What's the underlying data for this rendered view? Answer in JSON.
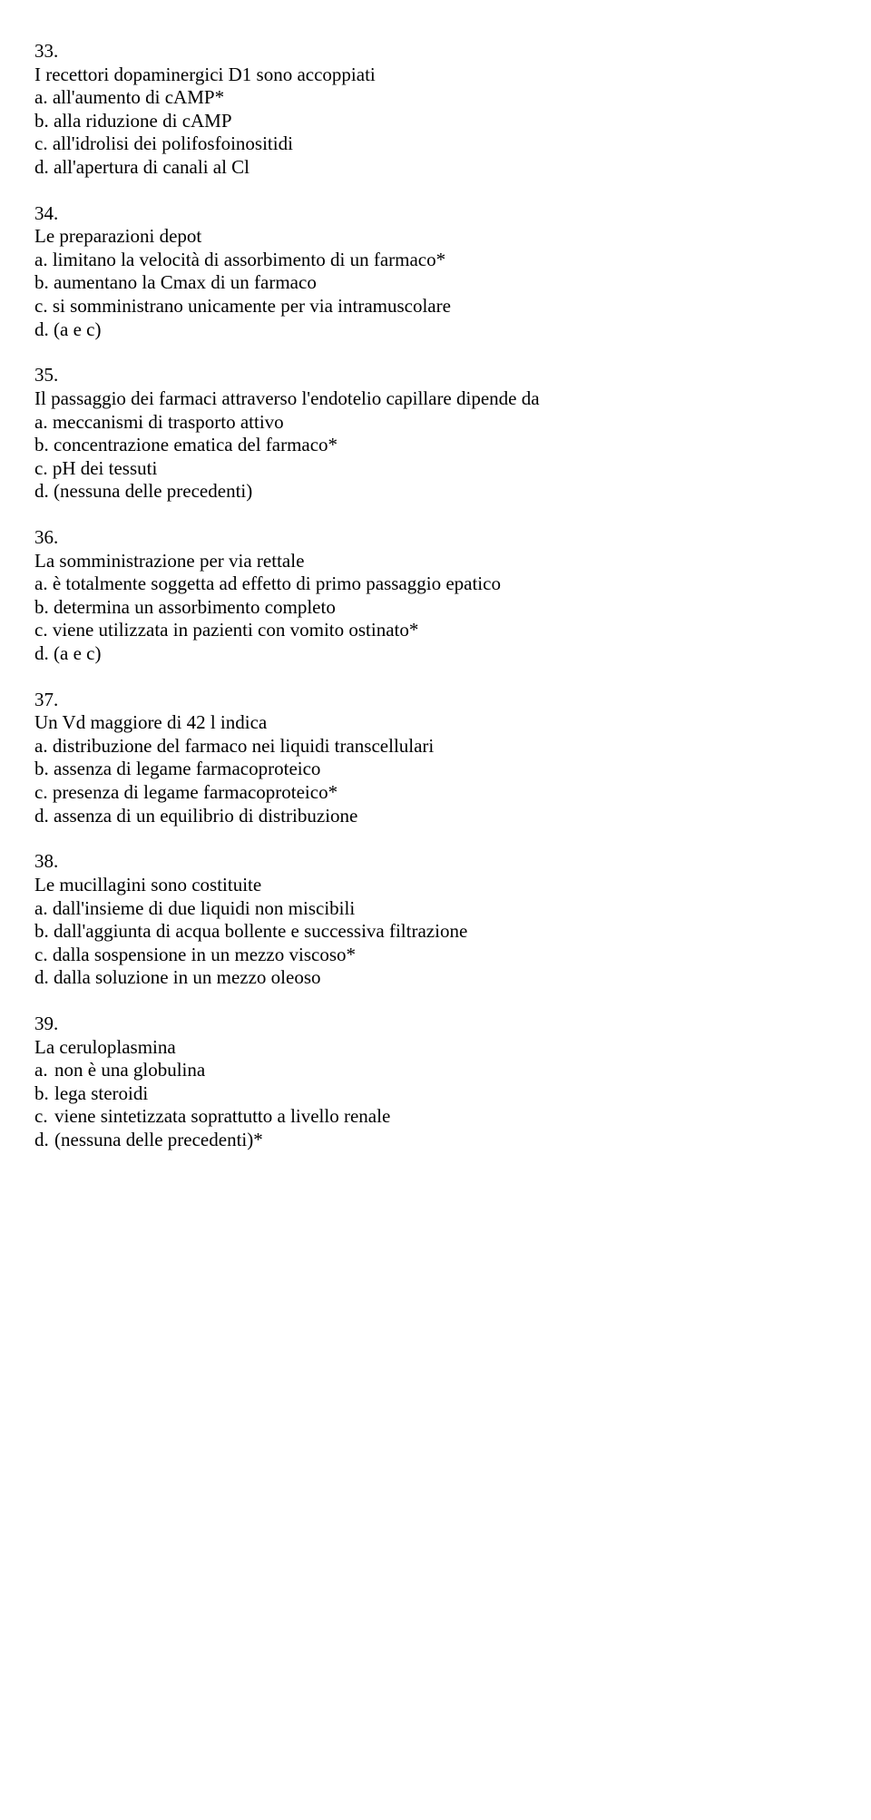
{
  "questions": [
    {
      "number": "33.",
      "stem": "I recettori dopaminergici D1 sono accoppiati",
      "options": [
        "a. all'aumento di cAMP*",
        "b. alla riduzione di cAMP",
        "c. all'idrolisi dei polifosfoinositidi",
        "d. all'apertura di canali al Cl"
      ],
      "indented": false
    },
    {
      "number": "34.",
      "stem": "Le preparazioni depot",
      "options": [
        "a. limitano la velocità di assorbimento di un farmaco*",
        "b. aumentano la Cmax di un farmaco",
        "c. si somministrano unicamente per via intramuscolare",
        "d. (a e c)"
      ],
      "indented": false
    },
    {
      "number": "35.",
      "stem": "Il passaggio dei farmaci attraverso l'endotelio capillare dipende da",
      "options": [
        "a. meccanismi di trasporto attivo",
        "b. concentrazione ematica del farmaco*",
        "c. pH dei tessuti",
        "d. (nessuna delle precedenti)"
      ],
      "indented": false
    },
    {
      "number": "36.",
      "stem": "La somministrazione per via rettale",
      "options": [
        "a. è totalmente soggetta ad effetto di primo passaggio epatico",
        "b. determina un assorbimento completo",
        "c. viene utilizzata in pazienti con vomito ostinato*",
        "d. (a e c)"
      ],
      "indented": false
    },
    {
      "number": "37.",
      "stem": "Un Vd maggiore di 42 l indica",
      "options": [
        "a. distribuzione del farmaco nei liquidi transcellulari",
        "b. assenza di legame farmacoproteico",
        "c. presenza di legame farmacoproteico*",
        "d. assenza di un equilibrio di distribuzione"
      ],
      "indented": false
    },
    {
      "number": "38.",
      "stem": "Le mucillagini sono costituite",
      "options": [
        "a. dall'insieme di due liquidi non miscibili",
        "b. dall'aggiunta di acqua bollente e successiva filtrazione",
        "c. dalla sospensione in un mezzo viscoso*",
        "d. dalla soluzione in un mezzo oleoso"
      ],
      "indented": false
    },
    {
      "number": "39.",
      "stem": "La ceruloplasmina",
      "options": [
        {
          "letter": "a.",
          "text": "non è una globulina"
        },
        {
          "letter": "b.",
          "text": "lega steroidi"
        },
        {
          "letter": "c.",
          "text": "viene sintetizzata soprattutto a livello renale"
        },
        {
          "letter": "d.",
          "text": "(nessuna delle precedenti)*"
        }
      ],
      "indented": true
    }
  ]
}
